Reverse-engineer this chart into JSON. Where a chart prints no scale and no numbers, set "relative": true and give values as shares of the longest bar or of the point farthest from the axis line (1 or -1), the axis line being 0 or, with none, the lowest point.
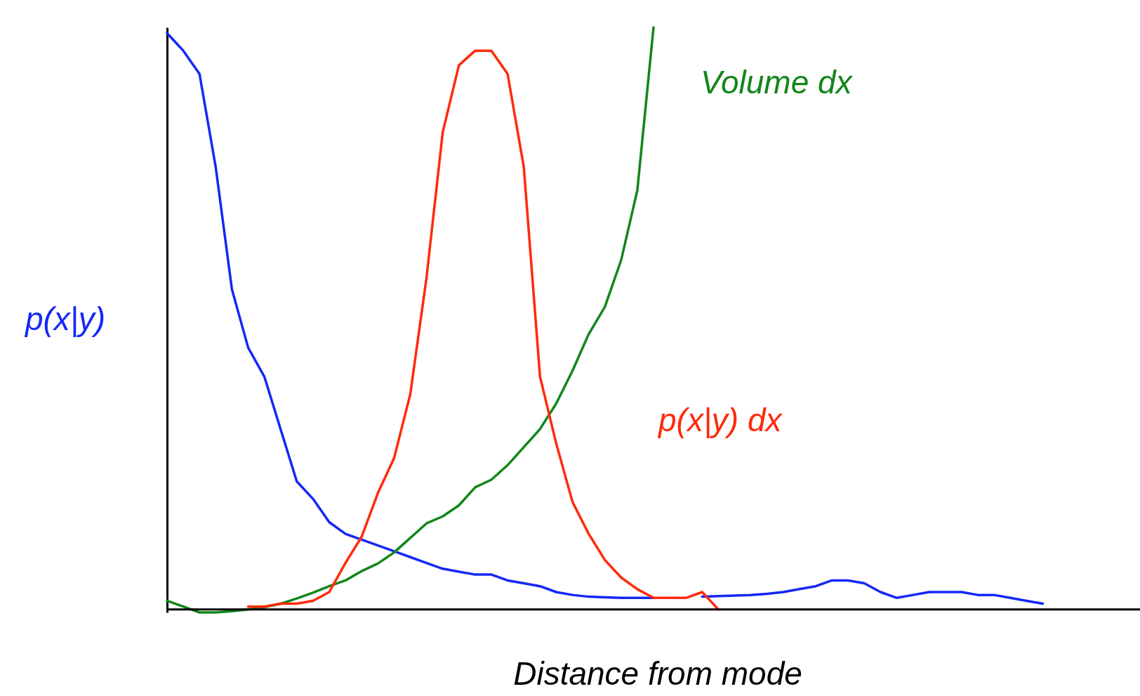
{
  "chart_data": {
    "type": "line",
    "relative": true,
    "xlabel": "Distance from mode",
    "categories": [
      null,
      null,
      null,
      null,
      null,
      null,
      null,
      null,
      null,
      null,
      null,
      null,
      null,
      null,
      null,
      null,
      null,
      null,
      null,
      null,
      null,
      null,
      null,
      null,
      null,
      null,
      null,
      null,
      null,
      null,
      null,
      null,
      null,
      null,
      null,
      null,
      null,
      null,
      null,
      null,
      null,
      null,
      null,
      null,
      null,
      null,
      null,
      null,
      null,
      null,
      null,
      null,
      null,
      null,
      null,
      null,
      null,
      null,
      null,
      null,
      null
    ],
    "series": [
      {
        "name": "p(x|y)",
        "color": "#1428f5",
        "values": [
          0.99,
          0.96,
          0.92,
          0.76,
          0.55,
          0.45,
          0.4,
          0.31,
          0.22,
          0.19,
          0.15,
          0.13,
          0.12,
          0.11,
          0.1,
          0.09,
          0.08,
          0.07,
          0.065,
          0.06,
          0.06,
          0.05,
          0.045,
          0.04,
          0.03,
          0.025,
          0.022,
          0.021,
          0.02,
          0.02,
          0.02,
          null,
          null,
          0.022,
          0.023,
          0.024,
          0.025,
          0.027,
          0.03,
          0.035,
          0.04,
          0.05,
          0.05,
          0.045,
          0.03,
          0.02,
          0.025,
          0.03,
          0.03,
          0.03,
          0.025,
          0.025,
          0.02,
          0.015,
          0.01,
          null,
          null,
          null,
          null,
          null,
          null
        ]
      },
      {
        "name": "Volume dx",
        "color": "#12861a",
        "values": [
          0.015,
          0.005,
          -0.005,
          -0.005,
          -0.003,
          0,
          0.004,
          0.01,
          0.019,
          0.029,
          0.04,
          0.05,
          0.066,
          0.079,
          0.098,
          0.123,
          0.148,
          0.16,
          0.179,
          0.21,
          0.223,
          0.248,
          0.279,
          0.31,
          0.354,
          0.41,
          0.473,
          0.52,
          0.6,
          0.72,
          1,
          null,
          null,
          null,
          null,
          null,
          null,
          null,
          null,
          null,
          null,
          null,
          null,
          null,
          null,
          null,
          null,
          null,
          null,
          null,
          null,
          null,
          null,
          null,
          null,
          null,
          null,
          null,
          null,
          null,
          null
        ]
      },
      {
        "name": "p(x|y) dx",
        "color": "#ff2a0a",
        "values": [
          null,
          null,
          null,
          null,
          null,
          0.005,
          0.005,
          0.01,
          0.01,
          0.015,
          0.03,
          0.08,
          0.125,
          0.2,
          0.26,
          0.37,
          0.57,
          0.82,
          0.935,
          0.96,
          0.96,
          0.92,
          0.76,
          0.4,
          0.285,
          0.185,
          0.13,
          0.085,
          0.055,
          0.035,
          0.02,
          0.02,
          0.02,
          0.03,
          0,
          null,
          null,
          null,
          null,
          null,
          null,
          null,
          null,
          null,
          null,
          null,
          null,
          null,
          null,
          null,
          null,
          null,
          null,
          null,
          null,
          null,
          null,
          null,
          null,
          null,
          null
        ]
      }
    ]
  }
}
